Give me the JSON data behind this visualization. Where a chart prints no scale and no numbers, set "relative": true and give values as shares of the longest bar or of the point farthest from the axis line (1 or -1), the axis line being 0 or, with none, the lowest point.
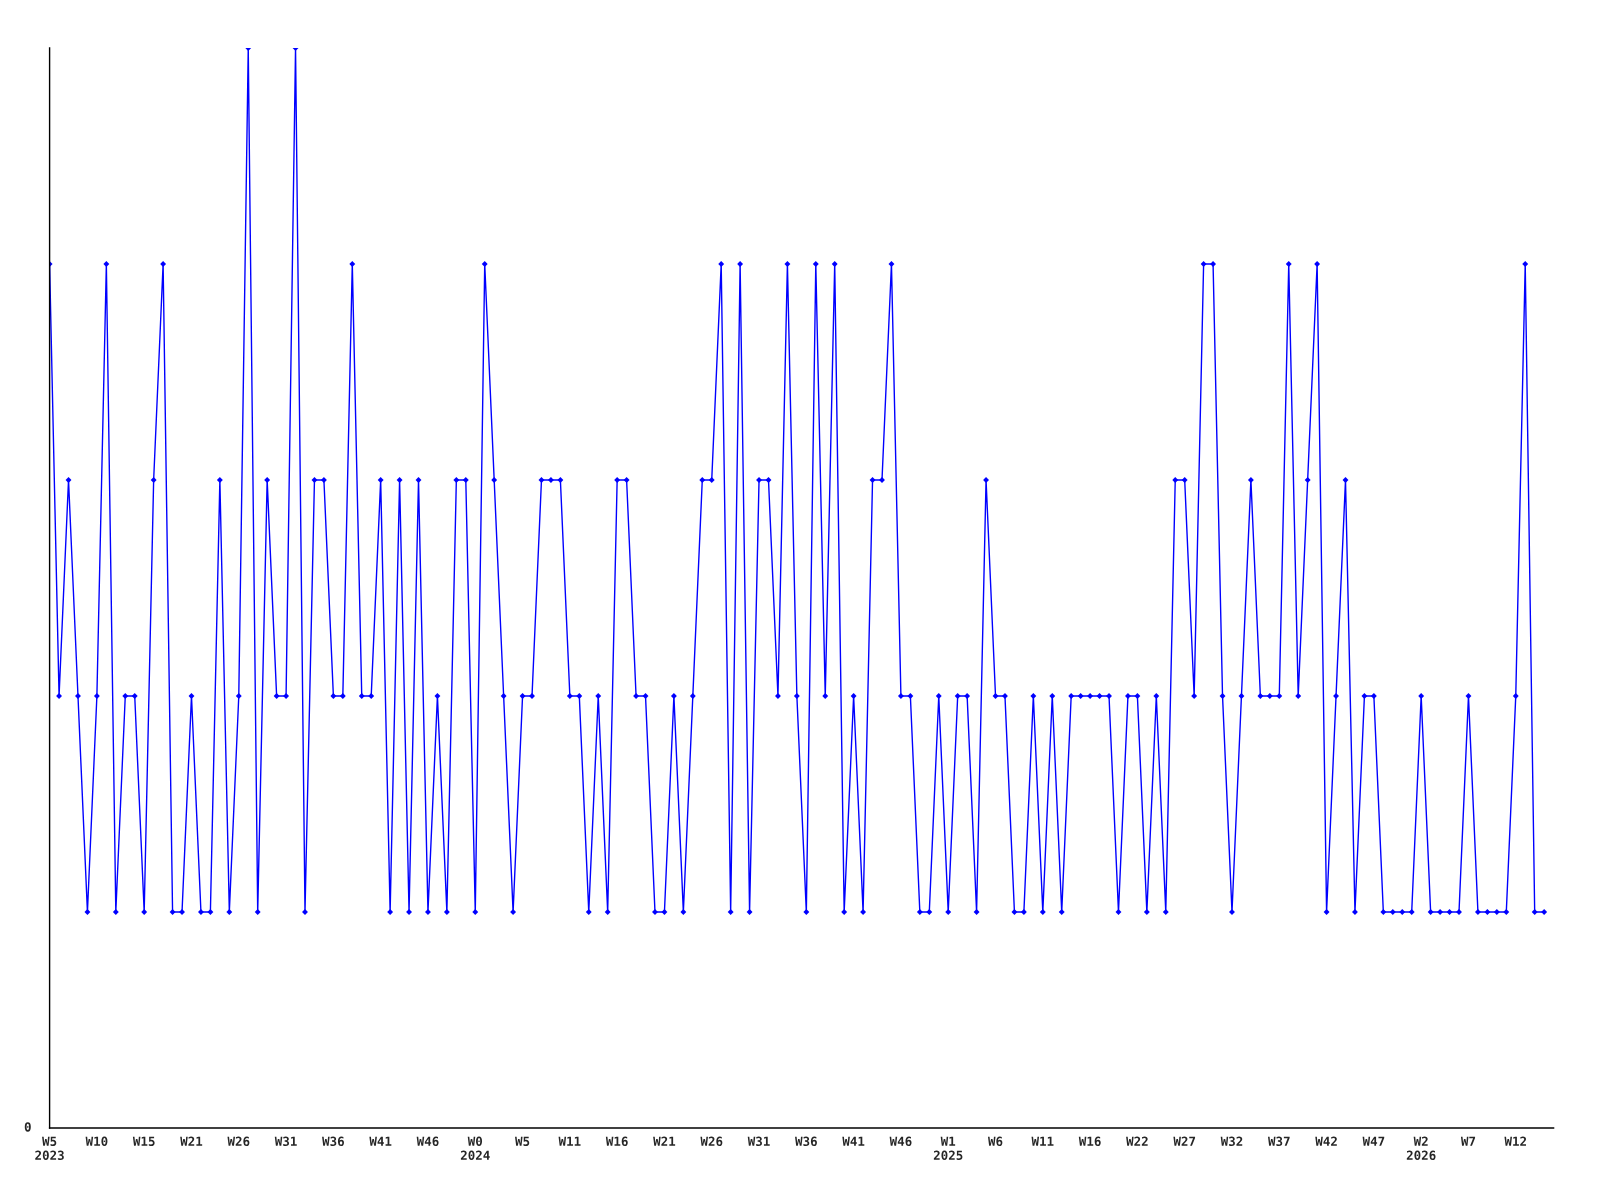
{
  "chart_data": {
    "type": "line",
    "relative": true,
    "categories": [
      "W5\n2023",
      null,
      null,
      null,
      null,
      "W10",
      null,
      null,
      null,
      null,
      "W15",
      null,
      null,
      null,
      null,
      "W21",
      null,
      null,
      null,
      null,
      "W26",
      null,
      null,
      null,
      null,
      "W31",
      null,
      null,
      null,
      null,
      "W36",
      null,
      null,
      null,
      null,
      "W41",
      null,
      null,
      null,
      null,
      "W46",
      null,
      null,
      null,
      null,
      "W0\n2024",
      null,
      null,
      null,
      null,
      "W5",
      null,
      null,
      null,
      null,
      "W11",
      null,
      null,
      null,
      null,
      "W16",
      null,
      null,
      null,
      null,
      "W21",
      null,
      null,
      null,
      null,
      "W26",
      null,
      null,
      null,
      null,
      "W31",
      null,
      null,
      null,
      null,
      "W36",
      null,
      null,
      null,
      null,
      "W41",
      null,
      null,
      null,
      null,
      "W46",
      null,
      null,
      null,
      null,
      "W1\n2025",
      null,
      null,
      null,
      null,
      "W6",
      null,
      null,
      null,
      null,
      "W11",
      null,
      null,
      null,
      null,
      "W16",
      null,
      null,
      null,
      null,
      "W22",
      null,
      null,
      null,
      null,
      "W27",
      null,
      null,
      null,
      null,
      "W32",
      null,
      null,
      null,
      null,
      "W37",
      null,
      null,
      null,
      null,
      "W42",
      null,
      null,
      null,
      null,
      "W47",
      null,
      null,
      null,
      null,
      "W2\n2026",
      null,
      null,
      null,
      null,
      "W7",
      null,
      null,
      null,
      null,
      "W12",
      null,
      null,
      null
    ],
    "series": [
      {
        "color": "#0000ff",
        "values": [
          0.8,
          0.4,
          0.6,
          0.4,
          0.2,
          0.4,
          0.8,
          0.2,
          0.4,
          0.4,
          0.2,
          0.6,
          0.8,
          0.2,
          0.2,
          0.4,
          0.2,
          0.2,
          0.6,
          0.2,
          0.4,
          1,
          0.2,
          0.6,
          0.4,
          0.4,
          1,
          0.2,
          0.6,
          0.6,
          0.4,
          0.4,
          0.8,
          0.4,
          0.4,
          0.6,
          0.2,
          0.6,
          0.2,
          0.6,
          0.2,
          0.4,
          0.2,
          0.6,
          0.6,
          0.2,
          0.8,
          0.6,
          0.4,
          0.2,
          0.4,
          0.4,
          0.6,
          0.6,
          0.6,
          0.4,
          0.4,
          0.2,
          0.4,
          0.2,
          0.6,
          0.6,
          0.4,
          0.4,
          0.2,
          0.2,
          0.4,
          0.2,
          0.4,
          0.6,
          0.6,
          0.8,
          0.2,
          0.8,
          0.2,
          0.6,
          0.6,
          0.4,
          0.8,
          0.4,
          0.2,
          0.8,
          0.4,
          0.8,
          0.2,
          0.4,
          0.2,
          0.6,
          0.6,
          0.8,
          0.4,
          0.4,
          0.2,
          0.2,
          0.4,
          0.2,
          0.4,
          0.4,
          0.2,
          0.6,
          0.4,
          0.4,
          0.2,
          0.2,
          0.4,
          0.2,
          0.4,
          0.2,
          0.4,
          0.4,
          0.4,
          0.4,
          0.4,
          0.2,
          0.4,
          0.4,
          0.2,
          0.4,
          0.2,
          0.6,
          0.6,
          0.4,
          0.8,
          0.8,
          0.4,
          0.2,
          0.4,
          0.6,
          0.4,
          0.4,
          0.4,
          0.8,
          0.4,
          0.6,
          0.8,
          0.2,
          0.4,
          0.6,
          0.2,
          0.4,
          0.4,
          0.2,
          0.2,
          0.2,
          0.2,
          0.4,
          0.2,
          0.2,
          0.2,
          0.2,
          0.4,
          0.2,
          0.2,
          0.2,
          0.2,
          0.4,
          0.8,
          0.2,
          0.2
        ]
      }
    ],
    "annotations": [
      "0"
    ],
    "marker": "diamond",
    "line_style": "solid",
    "grid": false,
    "legend": false
  }
}
